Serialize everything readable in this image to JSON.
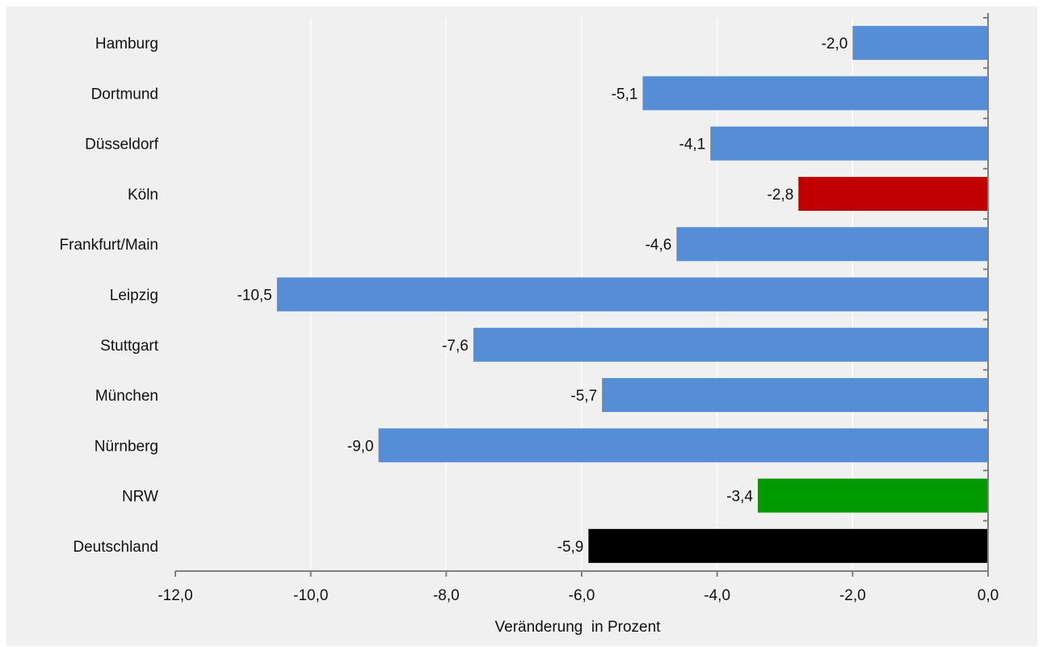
{
  "chart_data": {
    "type": "bar",
    "orientation": "horizontal",
    "categories": [
      "Hamburg",
      "Dortmund",
      "Düsseldorf",
      "Köln",
      "Frankfurt/Main",
      "Leipzig",
      "Stuttgart",
      "München",
      "Nürnberg",
      "NRW",
      "Deutschland"
    ],
    "values": [
      -2.0,
      -5.1,
      -4.1,
      -2.8,
      -4.6,
      -10.5,
      -7.6,
      -5.7,
      -9.0,
      -3.4,
      -5.9
    ],
    "value_labels": [
      "-2,0",
      "-5,1",
      "-4,1",
      "-2,8",
      "-4,6",
      "-10,5",
      "-7,6",
      "-5,7",
      "-9,0",
      "-3,4",
      "-5,9"
    ],
    "bar_colors": [
      "#558ed5",
      "#558ed5",
      "#558ed5",
      "#c00000",
      "#558ed5",
      "#558ed5",
      "#558ed5",
      "#558ed5",
      "#558ed5",
      "#009900",
      "#000000"
    ],
    "xlim": [
      -12.0,
      0.0
    ],
    "xticks": [
      -12.0,
      -10.0,
      -8.0,
      -6.0,
      -4.0,
      -2.0,
      0.0
    ],
    "xtick_labels": [
      "-12,0",
      "-10,0",
      "-8,0",
      "-6,0",
      "-4,0",
      "-2,0",
      "0,0"
    ],
    "xlabel": "Veränderung  in Prozent",
    "ylabel": "",
    "title": "",
    "grid": "vertical",
    "legend": "none",
    "colors": {
      "background": "#f0f0f0",
      "grid": "#ffffff",
      "axis": "#808080"
    }
  }
}
